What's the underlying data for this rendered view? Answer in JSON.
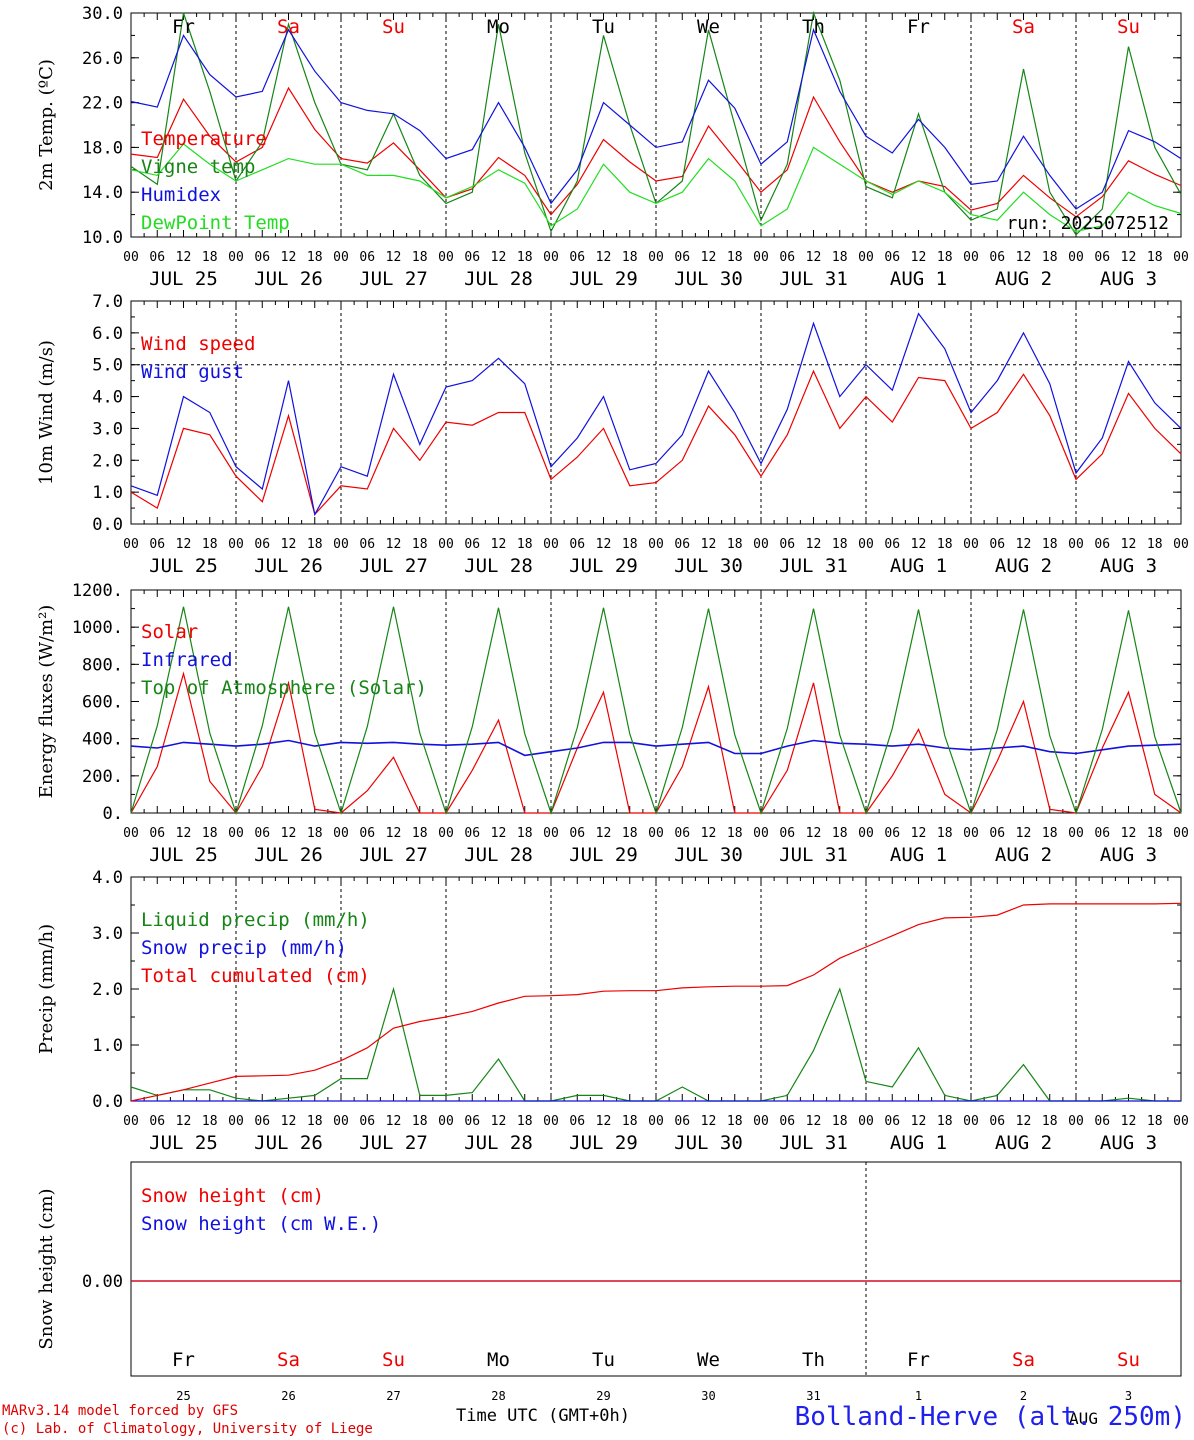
{
  "x_ticks_hours": [
    "00",
    "06",
    "12",
    "18"
  ],
  "dates": [
    "JUL 25",
    "JUL 26",
    "JUL 27",
    "JUL 28",
    "JUL 29",
    "JUL 30",
    "JUL 31",
    "AUG  1",
    "AUG  2",
    "AUG  3"
  ],
  "weekdays": [
    "Fr",
    "Sa",
    "Su",
    "Mo",
    "Tu",
    "We",
    "Th",
    "Fr",
    "Sa",
    "Su"
  ],
  "weekday_colors": [
    "#000000",
    "#ee0000",
    "#ee0000",
    "#000000",
    "#000000",
    "#000000",
    "#000000",
    "#000000",
    "#ee0000",
    "#ee0000"
  ],
  "day_numbers": [
    "25",
    "26",
    "27",
    "28",
    "29",
    "30",
    "31",
    "1",
    "2",
    "3"
  ],
  "month_marker": "AUG",
  "run_label": "run: 2025072512",
  "time_axis_label": "Time UTC (GMT+0h)",
  "credit_line1": "MARv3.14 model forced by GFS",
  "credit_line2": "(c) Lab. of Climatology, University of Liege",
  "station": "Bolland-Herve (alt. 250m)",
  "colors": {
    "red": "#ee0000",
    "green": "#168516",
    "blue": "#1111dd",
    "lightgreen": "#22dd22"
  },
  "chart_data": [
    {
      "type": "line",
      "ylabel": "2m Temp. (ºC)",
      "ylim": [
        10,
        30
      ],
      "yticks": [
        "10.0",
        "14.0",
        "18.0",
        "22.0",
        "26.0",
        "30.0"
      ],
      "x_unit": "hours since 2025-07-25 00 UTC",
      "x": [
        0,
        6,
        12,
        18,
        24,
        30,
        36,
        42,
        48,
        54,
        60,
        66,
        72,
        78,
        84,
        90,
        96,
        102,
        108,
        114,
        120,
        126,
        132,
        138,
        144,
        150,
        156,
        162,
        168,
        174,
        180,
        186,
        192,
        198,
        204,
        210,
        216,
        222,
        228,
        234,
        240
      ],
      "series": [
        {
          "name": "Temperature",
          "color": "#ee0000",
          "values": [
            17.4,
            17.1,
            22.3,
            19.0,
            16.7,
            18.0,
            23.3,
            19.6,
            17.0,
            16.6,
            18.4,
            16.0,
            13.5,
            14.3,
            17.1,
            15.5,
            12.0,
            14.7,
            18.7,
            16.7,
            15.0,
            15.4,
            19.9,
            17.0,
            14.0,
            16.0,
            22.5,
            18.5,
            15.0,
            14.0,
            15.0,
            14.5,
            12.4,
            13.0,
            15.5,
            13.5,
            11.8,
            13.6,
            16.8,
            15.6,
            14.6
          ]
        },
        {
          "name": "Vigne temp",
          "color": "#168516",
          "values": [
            16.3,
            14.7,
            30.0,
            23.0,
            15.0,
            18.5,
            29.0,
            22.0,
            16.5,
            16.0,
            21.0,
            15.5,
            13.0,
            14.0,
            29.0,
            17.5,
            10.5,
            15.0,
            28.0,
            20.0,
            13.0,
            15.0,
            28.5,
            20.0,
            11.5,
            16.5,
            30.0,
            24.0,
            14.5,
            13.5,
            21.0,
            14.0,
            11.5,
            12.5,
            25.0,
            14.0,
            10.2,
            12.5,
            27.0,
            18.0,
            13.8
          ]
        },
        {
          "name": "Humidex",
          "color": "#1111dd",
          "values": [
            22.1,
            21.6,
            28.0,
            24.5,
            22.5,
            23.0,
            28.5,
            24.8,
            22.0,
            21.3,
            21.0,
            19.5,
            17.0,
            17.8,
            22.0,
            18.0,
            13.0,
            16.0,
            22.0,
            20.0,
            18.0,
            18.5,
            24.0,
            21.5,
            16.5,
            18.5,
            28.5,
            23.0,
            19.0,
            17.5,
            20.5,
            18.0,
            14.7,
            15.0,
            19.0,
            15.5,
            12.5,
            14.0,
            19.5,
            18.5,
            17.0
          ]
        },
        {
          "name": "DewPoint Temp",
          "color": "#22dd22",
          "values": [
            16.0,
            15.5,
            18.3,
            16.5,
            15.0,
            16.0,
            17.0,
            16.5,
            16.5,
            15.5,
            15.5,
            15.0,
            13.5,
            14.5,
            16.0,
            14.8,
            11.0,
            12.5,
            16.5,
            14.0,
            13.0,
            14.0,
            17.0,
            15.0,
            11.0,
            12.5,
            18.0,
            16.5,
            15.0,
            13.8,
            15.0,
            14.0,
            12.0,
            11.5,
            14.0,
            12.0,
            10.5,
            11.0,
            14.0,
            12.8,
            12.1
          ]
        }
      ]
    },
    {
      "type": "line",
      "ylabel": "10m Wind (m/s)",
      "ylim": [
        0,
        7
      ],
      "yticks": [
        "0.0",
        "1.0",
        "2.0",
        "3.0",
        "4.0",
        "5.0",
        "6.0",
        "7.0"
      ],
      "reference_line": 5,
      "x": [
        0,
        6,
        12,
        18,
        24,
        30,
        36,
        42,
        48,
        54,
        60,
        66,
        72,
        78,
        84,
        90,
        96,
        102,
        108,
        114,
        120,
        126,
        132,
        138,
        144,
        150,
        156,
        162,
        168,
        174,
        180,
        186,
        192,
        198,
        204,
        210,
        216,
        222,
        228,
        234,
        240
      ],
      "series": [
        {
          "name": "Wind speed",
          "color": "#ee0000",
          "values": [
            1.0,
            0.5,
            3.0,
            2.8,
            1.5,
            0.7,
            3.4,
            0.3,
            1.2,
            1.1,
            3.0,
            2.0,
            3.2,
            3.1,
            3.5,
            3.5,
            1.4,
            2.1,
            3.0,
            1.2,
            1.3,
            2.0,
            3.7,
            2.8,
            1.5,
            2.8,
            4.8,
            3.0,
            4.0,
            3.2,
            4.6,
            4.5,
            3.0,
            3.5,
            4.7,
            3.4,
            1.4,
            2.2,
            4.1,
            3.0,
            2.2
          ]
        },
        {
          "name": "Wind gust",
          "color": "#1111dd",
          "values": [
            1.2,
            0.9,
            4.0,
            3.5,
            1.8,
            1.1,
            4.5,
            0.3,
            1.8,
            1.5,
            4.7,
            2.5,
            4.3,
            4.5,
            5.2,
            4.4,
            1.8,
            2.7,
            4.0,
            1.7,
            1.9,
            2.8,
            4.8,
            3.5,
            1.9,
            3.6,
            6.3,
            4.0,
            5.0,
            4.2,
            6.6,
            5.5,
            3.5,
            4.5,
            6.0,
            4.4,
            1.6,
            2.7,
            5.1,
            3.8,
            3.0
          ]
        }
      ]
    },
    {
      "type": "line",
      "ylabel": "Energy fluxes (W/m²)",
      "ylim": [
        0,
        1200
      ],
      "yticks": [
        "0.",
        "200.",
        "400.",
        "600.",
        "800.",
        "1000.",
        "1200."
      ],
      "x": [
        0,
        6,
        12,
        18,
        24,
        30,
        36,
        42,
        48,
        54,
        60,
        66,
        72,
        78,
        84,
        90,
        96,
        102,
        108,
        114,
        120,
        126,
        132,
        138,
        144,
        150,
        156,
        162,
        168,
        174,
        180,
        186,
        192,
        198,
        204,
        210,
        216,
        222,
        228,
        234,
        240
      ],
      "series": [
        {
          "name": "Solar",
          "color": "#ee0000",
          "values": [
            0,
            250,
            750,
            170,
            0,
            250,
            700,
            20,
            0,
            120,
            300,
            0,
            0,
            230,
            500,
            0,
            0,
            350,
            650,
            0,
            0,
            250,
            680,
            0,
            0,
            230,
            700,
            0,
            0,
            200,
            450,
            100,
            0,
            280,
            600,
            20,
            0,
            350,
            650,
            100,
            0
          ]
        },
        {
          "name": "Infrared",
          "color": "#1111dd",
          "values": [
            360,
            350,
            380,
            370,
            360,
            370,
            390,
            360,
            380,
            375,
            380,
            370,
            365,
            370,
            380,
            310,
            330,
            350,
            380,
            380,
            360,
            370,
            380,
            320,
            320,
            360,
            390,
            375,
            370,
            360,
            370,
            350,
            340,
            350,
            360,
            330,
            320,
            340,
            360,
            365,
            370
          ]
        },
        {
          "name": "Top of Atmosphere (Solar)",
          "color": "#168516",
          "values": [
            0,
            470,
            1110,
            430,
            0,
            470,
            1110,
            430,
            0,
            465,
            1110,
            430,
            0,
            465,
            1105,
            425,
            0,
            460,
            1105,
            425,
            0,
            460,
            1100,
            420,
            0,
            455,
            1100,
            420,
            0,
            455,
            1095,
            415,
            0,
            450,
            1095,
            415,
            0,
            450,
            1090,
            410,
            0
          ]
        }
      ]
    },
    {
      "type": "line",
      "ylabel": "Precip (mm/h)",
      "ylim": [
        0,
        4
      ],
      "yticks": [
        "0.0",
        "1.0",
        "2.0",
        "3.0",
        "4.0"
      ],
      "x": [
        0,
        6,
        12,
        18,
        24,
        30,
        36,
        42,
        48,
        54,
        60,
        66,
        72,
        78,
        84,
        90,
        96,
        102,
        108,
        114,
        120,
        126,
        132,
        138,
        144,
        150,
        156,
        162,
        168,
        174,
        180,
        186,
        192,
        198,
        204,
        210,
        216,
        222,
        228,
        234,
        240
      ],
      "series": [
        {
          "name": "Liquid precip (mm/h)",
          "color": "#168516",
          "values": [
            0.25,
            0.1,
            0.2,
            0.2,
            0.05,
            0.0,
            0.05,
            0.1,
            0.4,
            0.4,
            2.0,
            0.1,
            0.1,
            0.15,
            0.75,
            0.0,
            0.0,
            0.1,
            0.1,
            0.0,
            0.0,
            0.25,
            0.0,
            0.0,
            0.0,
            0.1,
            0.9,
            2.0,
            0.35,
            0.25,
            0.95,
            0.1,
            0.0,
            0.1,
            0.65,
            0.0,
            0.0,
            0.0,
            0.05,
            0.0,
            0.0
          ]
        },
        {
          "name": "Snow precip (mm/h)",
          "color": "#1111dd",
          "values": [
            0,
            0,
            0,
            0,
            0,
            0,
            0,
            0,
            0,
            0,
            0,
            0,
            0,
            0,
            0,
            0,
            0,
            0,
            0,
            0,
            0,
            0,
            0,
            0,
            0,
            0,
            0,
            0,
            0,
            0,
            0,
            0,
            0,
            0,
            0,
            0,
            0,
            0,
            0,
            0,
            0
          ]
        },
        {
          "name": "Total cumulated (cm)",
          "color": "#ee0000",
          "values": [
            0.0,
            0.1,
            0.2,
            0.32,
            0.44,
            0.45,
            0.46,
            0.55,
            0.72,
            0.95,
            1.3,
            1.42,
            1.5,
            1.6,
            1.75,
            1.87,
            1.88,
            1.9,
            1.96,
            1.97,
            1.97,
            2.02,
            2.04,
            2.05,
            2.05,
            2.06,
            2.25,
            2.55,
            2.75,
            2.95,
            3.15,
            3.27,
            3.28,
            3.32,
            3.5,
            3.52,
            3.52,
            3.52,
            3.52,
            3.52,
            3.53
          ]
        }
      ]
    },
    {
      "type": "line",
      "ylabel": "Snow height (cm)",
      "yticks": [
        "0.00"
      ],
      "x": [
        0,
        240
      ],
      "series": [
        {
          "name": "Snow height (cm)",
          "color": "#ee0000",
          "values": [
            0,
            0
          ]
        },
        {
          "name": "Snow height (cm W.E.)",
          "color": "#1111dd",
          "values": [
            0,
            0
          ]
        }
      ]
    }
  ]
}
